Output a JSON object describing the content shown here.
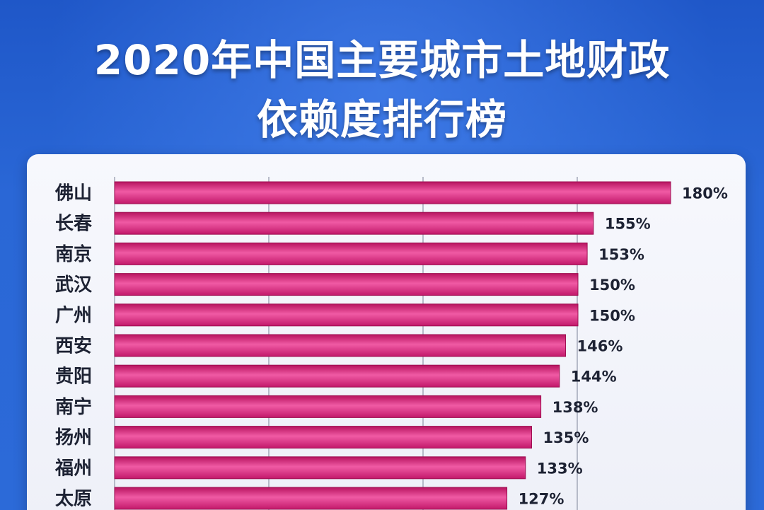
{
  "title": {
    "line1": "2020年中国主要城市土地财政",
    "line2": "依赖度排行榜"
  },
  "colors": {
    "background": "#2a67d6",
    "panel": "#f4f5fb",
    "bar": "#d9207a",
    "bar_highlight": "#f05aa4",
    "gridline": "#8f95a8",
    "text": "#1d2233"
  },
  "chart_data": {
    "type": "bar",
    "orientation": "horizontal",
    "categories": [
      "佛山",
      "长春",
      "南京",
      "武汉",
      "广州",
      "西安",
      "贵阳",
      "南宁",
      "扬州",
      "福州",
      "太原"
    ],
    "values": [
      180,
      155,
      153,
      150,
      150,
      146,
      144,
      138,
      135,
      133,
      127
    ],
    "value_labels": [
      "180%",
      "155%",
      "153%",
      "150%",
      "150%",
      "146%",
      "144%",
      "138%",
      "135%",
      "133%",
      "127%"
    ],
    "unit": "%",
    "xlim": [
      0,
      180
    ],
    "grid": true,
    "legend": "none"
  }
}
